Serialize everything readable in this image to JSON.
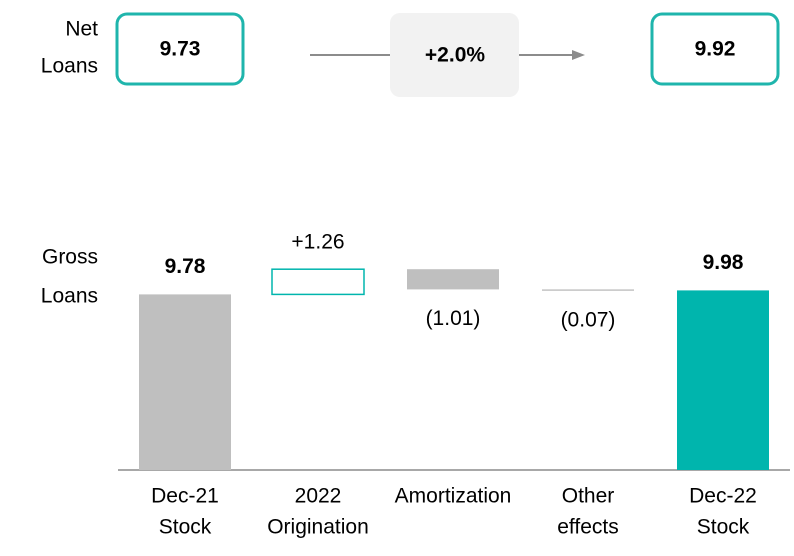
{
  "top": {
    "label": [
      "Net",
      "Loans"
    ],
    "start": "9.73",
    "change": "+2.0%",
    "end": "9.92"
  },
  "chart_data": {
    "type": "waterfall",
    "y_label": [
      "Gross",
      "Loans"
    ],
    "categories": [
      [
        "Dec-21",
        "Stock"
      ],
      [
        "2022",
        "Origination"
      ],
      [
        "Amortization"
      ],
      [
        "Other",
        "effects"
      ],
      [
        "Dec-22",
        "Stock"
      ]
    ],
    "measure": [
      "absolute",
      "relative",
      "relative",
      "relative",
      "absolute"
    ],
    "values": [
      9.78,
      1.26,
      -1.01,
      -0.07,
      9.98
    ],
    "value_labels": [
      "9.78",
      "+1.26",
      "(1.01)",
      "(0.07)",
      "9.98"
    ],
    "colors": [
      "#bfbfbf",
      "#00b5ad",
      "#bfbfbf",
      "#bfbfbf",
      "#00b5ad"
    ],
    "ylim": [
      1,
      12
    ]
  }
}
